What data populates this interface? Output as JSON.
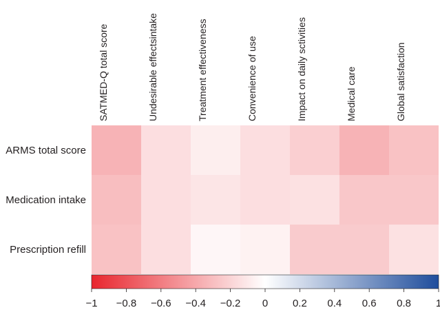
{
  "chart_data": {
    "type": "heatmap",
    "columns": [
      "SATMED-Q total score",
      "Undesirable effectsintake",
      "Treatment effectiveness",
      "Convenience of use",
      "Impact on daily sctivities",
      "Medical care",
      "Global satisfaction"
    ],
    "rows": [
      "ARMS total score",
      "Medication intake",
      "Prescription refill"
    ],
    "values": [
      [
        -0.35,
        -0.15,
        -0.08,
        -0.15,
        -0.22,
        -0.35,
        -0.28
      ],
      [
        -0.3,
        -0.15,
        -0.12,
        -0.15,
        -0.14,
        -0.26,
        -0.26
      ],
      [
        -0.28,
        -0.15,
        -0.04,
        -0.06,
        -0.24,
        -0.24,
        -0.14
      ]
    ],
    "colorbar": {
      "min": -1,
      "max": 1,
      "ticks": [
        "−1",
        "−0.8",
        "−0.6",
        "−0.4",
        "−0.2",
        "0",
        "0.2",
        "0.4",
        "0.6",
        "0.8",
        "1"
      ],
      "tick_values": [
        -1,
        -0.8,
        -0.6,
        -0.4,
        -0.2,
        0,
        0.2,
        0.4,
        0.6,
        0.8,
        1
      ],
      "colors": {
        "negative": "#e8262e",
        "neutral": "#ffffff",
        "positive": "#1f4d9c"
      }
    }
  }
}
